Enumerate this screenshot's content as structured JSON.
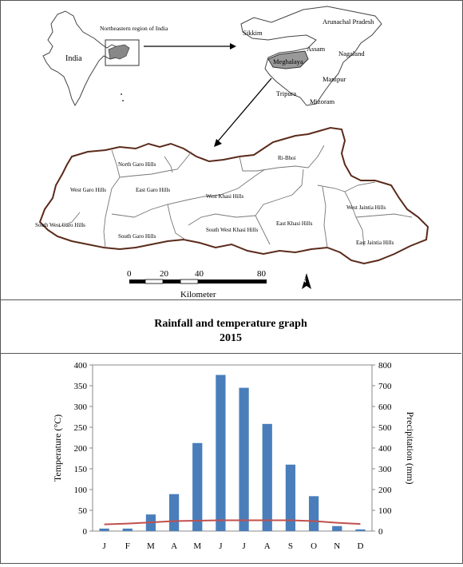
{
  "map": {
    "india_label": "India",
    "inset_caption": "Northeastern region of India",
    "ne_states": [
      "Sikkim",
      "Arunachal Pradesh",
      "Assam",
      "Nagaland",
      "Meghalaya",
      "Manipur",
      "Tripura",
      "Mizoram"
    ],
    "districts": [
      "North Garo Hills",
      "West Garo Hills",
      "East Garo Hills",
      "South West Garo Hills",
      "South Garo Hills",
      "Ri-Bhoi",
      "West Khasi Hills",
      "South West Khasi Hills",
      "East Khasi Hills",
      "West Jaintia Hills",
      "East Jaintia Hills"
    ],
    "scale": {
      "ticks": [
        "0",
        "20",
        "40",
        "80"
      ],
      "unit": "Kilometer"
    },
    "north_label": "N"
  },
  "chart_title": {
    "line1": "Rainfall and temperature graph",
    "line2": "2015"
  },
  "chart_data": {
    "type": "bar",
    "categories": [
      "J",
      "F",
      "M",
      "A",
      "M",
      "J",
      "J",
      "A",
      "S",
      "O",
      "N",
      "D"
    ],
    "series": [
      {
        "type": "bar",
        "axis": "right",
        "color": "#4a7ebb",
        "values": [
          12,
          12,
          80,
          178,
          424,
          752,
          690,
          516,
          320,
          168,
          24,
          8
        ]
      },
      {
        "type": "line",
        "axis": "left",
        "color": "#c0504d",
        "values": [
          16,
          18,
          21,
          24,
          25,
          26,
          26,
          26,
          26,
          24,
          20,
          17
        ]
      }
    ],
    "ylabel_left": "Temperature (°C)",
    "ylabel_right": "Precipitation (mm)",
    "ylim_left": [
      0,
      400
    ],
    "ylim_right": [
      0,
      800
    ],
    "yticks_left": [
      "0",
      "50",
      "100",
      "150",
      "200",
      "250",
      "300",
      "350",
      "400"
    ],
    "yticks_right": [
      "0",
      "100",
      "200",
      "300",
      "400",
      "500",
      "600",
      "700",
      "800"
    ],
    "grid": false
  }
}
